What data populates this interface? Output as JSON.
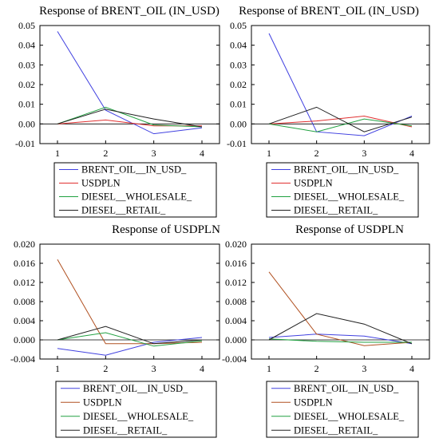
{
  "chart_data": [
    {
      "type": "line",
      "title": "Response of BRENT_OIL (IN_USD)",
      "x": [
        1,
        2,
        3,
        4
      ],
      "xticks": [
        "1",
        "2",
        "3",
        "4"
      ],
      "ylim": [
        -0.01,
        0.05
      ],
      "yticks": [
        "0.05",
        "0.04",
        "0.03",
        "0.02",
        "0.01",
        "0.00",
        "-0.01"
      ],
      "ytick_values": [
        0.05,
        0.04,
        0.03,
        0.02,
        0.01,
        0.0,
        -0.01
      ],
      "series": [
        {
          "name": "BRENT_OIL__IN_USD_",
          "color": "#4040e0",
          "values": [
            0.047,
            0.007,
            -0.005,
            -0.002
          ]
        },
        {
          "name": "USDPLN",
          "color": "#e03030",
          "values": [
            0.0,
            0.002,
            -0.001,
            -0.001
          ]
        },
        {
          "name": "DIESEL__WHOLESALE_",
          "color": "#20a040",
          "values": [
            0.0,
            0.0085,
            -0.0005,
            -0.0015
          ]
        },
        {
          "name": "DIESEL__RETAIL_",
          "color": "#202020",
          "values": [
            0.0,
            0.0075,
            0.0025,
            -0.0015
          ]
        }
      ]
    },
    {
      "type": "line",
      "title": "Response of BRENT_OIL (IN_USD)",
      "x": [
        1,
        2,
        3,
        4
      ],
      "xticks": [
        "1",
        "2",
        "3",
        "4"
      ],
      "ylim": [
        -0.01,
        0.05
      ],
      "yticks": [
        "0.05",
        "0.04",
        "0.03",
        "0.02",
        "0.01",
        "0.00",
        "-0.01"
      ],
      "ytick_values": [
        0.05,
        0.04,
        0.03,
        0.02,
        0.01,
        0.0,
        -0.01
      ],
      "series": [
        {
          "name": "BRENT_OIL__IN_USD_",
          "color": "#4040e0",
          "values": [
            0.046,
            -0.004,
            -0.006,
            0.004
          ]
        },
        {
          "name": "USDPLN",
          "color": "#e03030",
          "values": [
            0.0,
            0.0015,
            0.004,
            -0.0015
          ]
        },
        {
          "name": "DIESEL__WHOLESALE_",
          "color": "#20a040",
          "values": [
            0.0,
            -0.004,
            0.0025,
            -0.001
          ]
        },
        {
          "name": "DIESEL__RETAIL_",
          "color": "#202020",
          "values": [
            0.0,
            0.0085,
            -0.004,
            0.0035
          ]
        }
      ]
    },
    {
      "type": "line",
      "title": "Response of USDPLN",
      "x": [
        1,
        2,
        3,
        4
      ],
      "xticks": [
        "1",
        "2",
        "3",
        "4"
      ],
      "ylim": [
        -0.004,
        0.02
      ],
      "yticks": [
        "0.020",
        "0.016",
        "0.012",
        "0.008",
        "0.004",
        "0.000",
        "-0.004"
      ],
      "ytick_values": [
        0.02,
        0.016,
        0.012,
        0.008,
        0.004,
        0.0,
        -0.004
      ],
      "series": [
        {
          "name": "BRENT_OIL__IN_USD_",
          "color": "#4040e0",
          "values": [
            -0.0018,
            -0.0032,
            -0.0005,
            0.0005
          ]
        },
        {
          "name": "USDPLN",
          "color": "#b05020",
          "values": [
            0.0168,
            -0.0008,
            -0.0008,
            -0.0005
          ]
        },
        {
          "name": "DIESEL__WHOLESALE_",
          "color": "#20a040",
          "values": [
            0.0,
            0.0015,
            -0.0013,
            -0.0002
          ]
        },
        {
          "name": "DIESEL__RETAIL_",
          "color": "#202020",
          "values": [
            0.0,
            0.0028,
            -0.0008,
            0.0
          ]
        }
      ]
    },
    {
      "type": "line",
      "title": "Response of USDPLN",
      "x": [
        1,
        2,
        3,
        4
      ],
      "xticks": [
        "1",
        "2",
        "3",
        "4"
      ],
      "ylim": [
        -0.004,
        0.02
      ],
      "yticks": [
        "0.020",
        "0.016",
        "0.012",
        "0.008",
        "0.004",
        "0.000",
        "-0.004"
      ],
      "ytick_values": [
        0.02,
        0.016,
        0.012,
        0.008,
        0.004,
        0.0,
        -0.004
      ],
      "series": [
        {
          "name": "BRENT_OIL__IN_USD_",
          "color": "#4040e0",
          "values": [
            0.0005,
            0.0012,
            0.0008,
            -0.0008
          ]
        },
        {
          "name": "USDPLN",
          "color": "#b05020",
          "values": [
            0.0142,
            0.0012,
            -0.0012,
            -0.0005
          ]
        },
        {
          "name": "DIESEL__WHOLESALE_",
          "color": "#20a040",
          "values": [
            0.0002,
            -0.0003,
            -0.0005,
            -0.0005
          ]
        },
        {
          "name": "DIESEL__RETAIL_",
          "color": "#202020",
          "values": [
            0.0,
            0.0055,
            0.0033,
            -0.0008
          ]
        }
      ]
    }
  ]
}
